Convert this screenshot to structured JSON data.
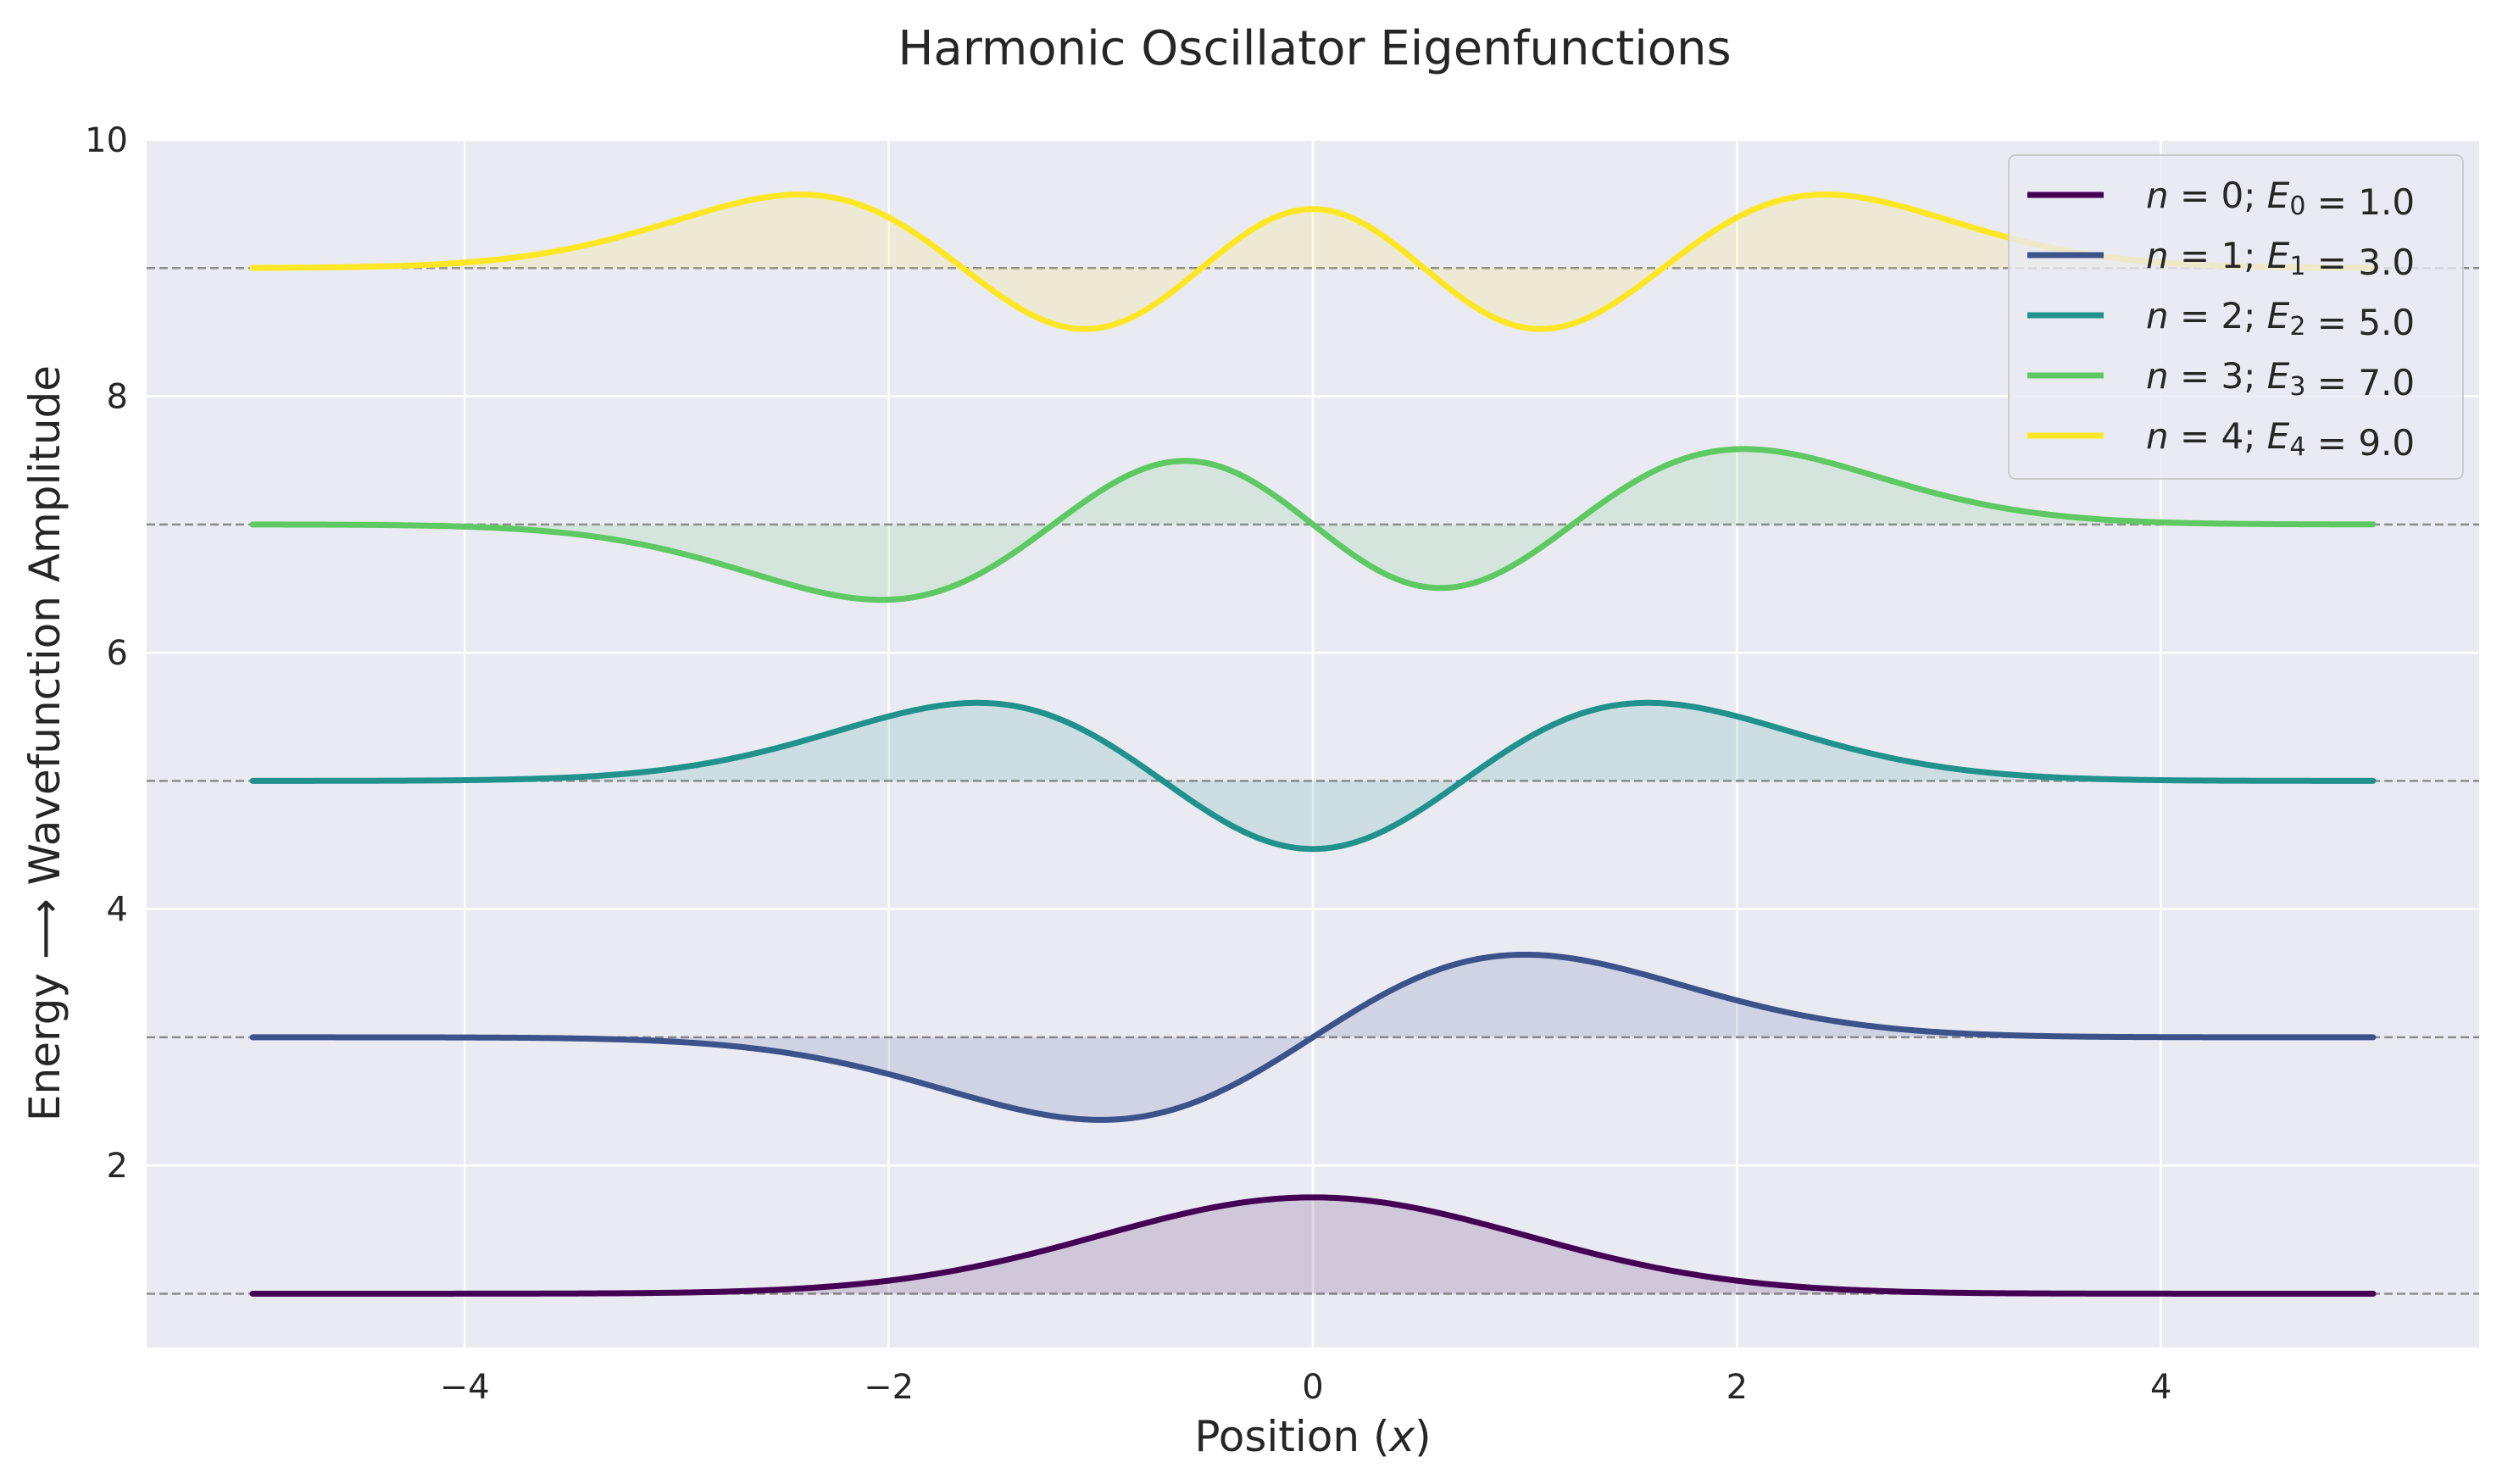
{
  "chart_data": {
    "type": "line",
    "title": "Harmonic Oscillator Eigenfunctions",
    "xlabel": "Position (x)",
    "ylabel": "Energy ⟶ Wavefunction Amplitude",
    "xlim": [
      -5.5,
      5.5
    ],
    "ylim": [
      0.58,
      10
    ],
    "x_range": [
      -5,
      5
    ],
    "x_ticks": [
      -4,
      -2,
      0,
      2,
      4
    ],
    "x_tick_labels": [
      "−4",
      "−2",
      "0",
      "2",
      "4"
    ],
    "y_ticks": [
      2,
      4,
      6,
      8,
      10
    ],
    "y_tick_labels": [
      "2",
      "4",
      "6",
      "8",
      "10"
    ],
    "grid": true,
    "background": "#eaeaf2",
    "legend_position": "top-right",
    "series": [
      {
        "name": "n = 0; E0 = 1.0",
        "n": 0,
        "energy": 1.0,
        "color": "#440154"
      },
      {
        "name": "n = 1; E1 = 3.0",
        "n": 1,
        "energy": 3.0,
        "color": "#3b528b"
      },
      {
        "name": "n = 2; E2 = 5.0",
        "n": 2,
        "energy": 5.0,
        "color": "#21918c"
      },
      {
        "name": "n = 3; E3 = 7.0",
        "n": 3,
        "energy": 7.0,
        "color": "#5ec962"
      },
      {
        "name": "n = 4; E4 = 9.0",
        "n": 4,
        "energy": 9.0,
        "color": "#fde725"
      }
    ],
    "legend": [
      {
        "n": "0",
        "sub": "0",
        "e": "1.0"
      },
      {
        "n": "1",
        "sub": "1",
        "e": "3.0"
      },
      {
        "n": "2",
        "sub": "2",
        "e": "5.0"
      },
      {
        "n": "3",
        "sub": "3",
        "e": "7.0"
      },
      {
        "n": "4",
        "sub": "4",
        "e": "9.0"
      }
    ]
  }
}
